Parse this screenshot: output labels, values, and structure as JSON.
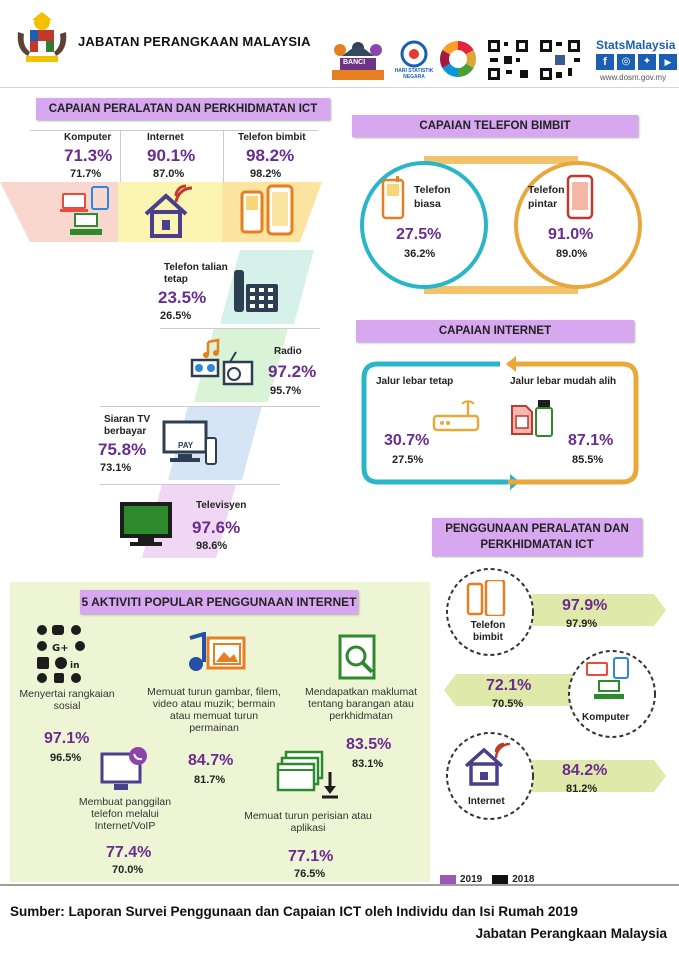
{
  "header": {
    "org_title": "JABATAN PERANGKAAN MALAYSIA",
    "banci_label": "BANCI",
    "stat_day_label": "HARI STATISTIK NEGARA",
    "stats_brand": "StatsMalaysia",
    "website": "www.dosm.gov.my"
  },
  "sections": {
    "ict_access": "CAPAIAN PERALATAN DAN PERKHIDMATAN ICT",
    "mobile_access": "CAPAIAN TELEFON BIMBIT",
    "internet_access": "CAPAIAN INTERNET",
    "usage": "PENGGUNAAN PERALATAN DAN PERKHIDMATAN ICT",
    "top5": "5 AKTIVITI POPULAR PENGGUNAAN INTERNET"
  },
  "ict_items": [
    {
      "label": "Komputer",
      "v2019": "71.3%",
      "v2018": "71.7%",
      "icon": "computer-icon"
    },
    {
      "label": "Internet",
      "v2019": "90.1%",
      "v2018": "87.0%",
      "icon": "house-wifi-icon"
    },
    {
      "label": "Telefon bimbit",
      "v2019": "98.2%",
      "v2018": "98.2%",
      "icon": "phones-icon"
    },
    {
      "label": "Telefon talian tetap",
      "v2019": "23.5%",
      "v2018": "26.5%",
      "icon": "landline-icon"
    },
    {
      "label": "Radio",
      "v2019": "97.2%",
      "v2018": "95.7%",
      "icon": "radio-icon"
    },
    {
      "label": "Siaran TV berbayar",
      "v2019": "75.8%",
      "v2018": "73.1%",
      "icon": "paytv-icon"
    },
    {
      "label": "Televisyen",
      "v2019": "97.6%",
      "v2018": "98.6%",
      "icon": "tv-icon"
    }
  ],
  "pay_text": "PAY",
  "mobile": [
    {
      "label": "Telefon biasa",
      "v2019": "27.5%",
      "v2018": "36.2%"
    },
    {
      "label": "Telefon pintar",
      "v2019": "91.0%",
      "v2018": "89.0%"
    }
  ],
  "internet": [
    {
      "label": "Jalur lebar tetap",
      "v2019": "30.7%",
      "v2018": "27.5%"
    },
    {
      "label": "Jalur lebar mudah alih",
      "v2019": "87.1%",
      "v2018": "85.5%"
    }
  ],
  "usage": [
    {
      "label": "Telefon bimbit",
      "v2019": "97.9%",
      "v2018": "97.9%"
    },
    {
      "label": "Komputer",
      "v2019": "72.1%",
      "v2018": "70.5%"
    },
    {
      "label": "Internet",
      "v2019": "84.2%",
      "v2018": "81.2%"
    }
  ],
  "activities": [
    {
      "label": "Menyertai rangkaian sosial",
      "v2019": "97.1%",
      "v2018": "96.5%"
    },
    {
      "label": "Memuat turun gambar, filem, video atau muzik; bermain atau memuat turun permainan",
      "v2019": "84.7%",
      "v2018": "81.7%"
    },
    {
      "label": "Mendapatkan maklumat tentang barangan atau perkhidmatan",
      "v2019": "83.5%",
      "v2018": "83.1%"
    },
    {
      "label": "Membuat panggilan telefon melalui Internet/VoIP",
      "v2019": "77.4%",
      "v2018": "70.0%"
    },
    {
      "label": "Memuat turun perisian atau aplikasi",
      "v2019": "77.1%",
      "v2018": "76.5%"
    }
  ],
  "legend": {
    "y2019": "2019",
    "y2018": "2018",
    "c2019": "#9b59b6",
    "c2018": "#111111"
  },
  "footer": {
    "line1": "Sumber: Laporan Survei Penggunaan dan Capaian ICT oleh Individu dan Isi Rumah 2019",
    "line2": "Jabatan Perangkaan Malaysia"
  },
  "colors": {
    "accent": "#6a2c91",
    "banner": "#d7a7f0",
    "panel": "#eef5d4"
  }
}
